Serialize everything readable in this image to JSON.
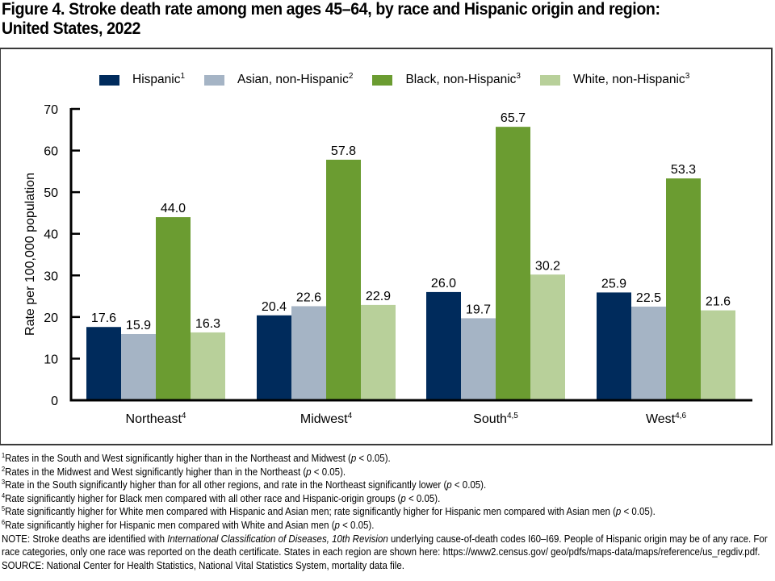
{
  "title": {
    "line1": "Figure 4. Stroke death rate among men ages 45–64, by race and Hispanic origin and region:",
    "line2": "United States, 2022"
  },
  "chart_data": {
    "type": "bar",
    "title": "Figure 4. Stroke death rate among men ages 45–64, by race and Hispanic origin and region: United States, 2022",
    "xlabel": "",
    "ylabel": "Rate per 100,000 population",
    "ylim": [
      0,
      70
    ],
    "yticks": [
      0,
      10,
      20,
      30,
      40,
      50,
      60,
      70
    ],
    "grid": false,
    "legend_position": "top",
    "categories": [
      {
        "label": "Northeast",
        "sup": "4"
      },
      {
        "label": "Midwest",
        "sup": "4"
      },
      {
        "label": "South",
        "sup": "4,5"
      },
      {
        "label": "West",
        "sup": "4,6"
      }
    ],
    "series": [
      {
        "name": "Hispanic",
        "sup": "1",
        "color": "#002b5c",
        "values": [
          17.6,
          20.4,
          26.0,
          25.9
        ]
      },
      {
        "name": "Asian, non-Hispanic",
        "sup": "2",
        "color": "#a5b4c5",
        "values": [
          15.9,
          22.6,
          19.7,
          22.5
        ]
      },
      {
        "name": "Black, non-Hispanic",
        "sup": "3",
        "color": "#6b9c31",
        "values": [
          44.0,
          57.8,
          65.7,
          53.3
        ]
      },
      {
        "name": "White, non-Hispanic",
        "sup": "3",
        "color": "#b8d09a",
        "values": [
          16.3,
          22.9,
          30.2,
          21.6
        ]
      }
    ]
  },
  "footnotes": [
    {
      "sup": "1",
      "text": "Rates in the South and West significantly higher than in the Northeast and Midwest (",
      "p": "p",
      "tail": " < 0.05)."
    },
    {
      "sup": "2",
      "text": "Rates in the Midwest and West significantly higher than in the Northeast (",
      "p": "p",
      "tail": " < 0.05)."
    },
    {
      "sup": "3",
      "text": "Rate in the South significantly higher than for all other regions, and rate in the Northeast significantly lower (",
      "p": "p",
      "tail": " < 0.05)."
    },
    {
      "sup": "4",
      "text": "Rate significantly higher for Black men compared with all other race and Hispanic-origin groups (",
      "p": "p",
      "tail": " < 0.05)."
    },
    {
      "sup": "5",
      "text": "Rate significantly higher for White men compared with Hispanic and Asian men; rate significantly higher for Hispanic men compared with Asian men (",
      "p": "p",
      "tail": " < 0.05)."
    },
    {
      "sup": "6",
      "text": "Rate significantly higher for Hispanic men compared with White and Asian men (",
      "p": "p",
      "tail": " < 0.05)."
    }
  ],
  "note": {
    "prefix": "NOTE: Stroke deaths are identified with ",
    "italic": "International Classification of Diseases, 10th Revision",
    "suffix": " underlying cause-of-death codes I60–I69. People of Hispanic origin may be of any race. For race categories, only one race was reported on the death certificate. States in each region are shown here: https://www2.census.gov/ geo/pdfs/maps-data/maps/reference/us_regdiv.pdf."
  },
  "source": "SOURCE: National Center for Health Statistics, National Vital Statistics System, mortality data file."
}
